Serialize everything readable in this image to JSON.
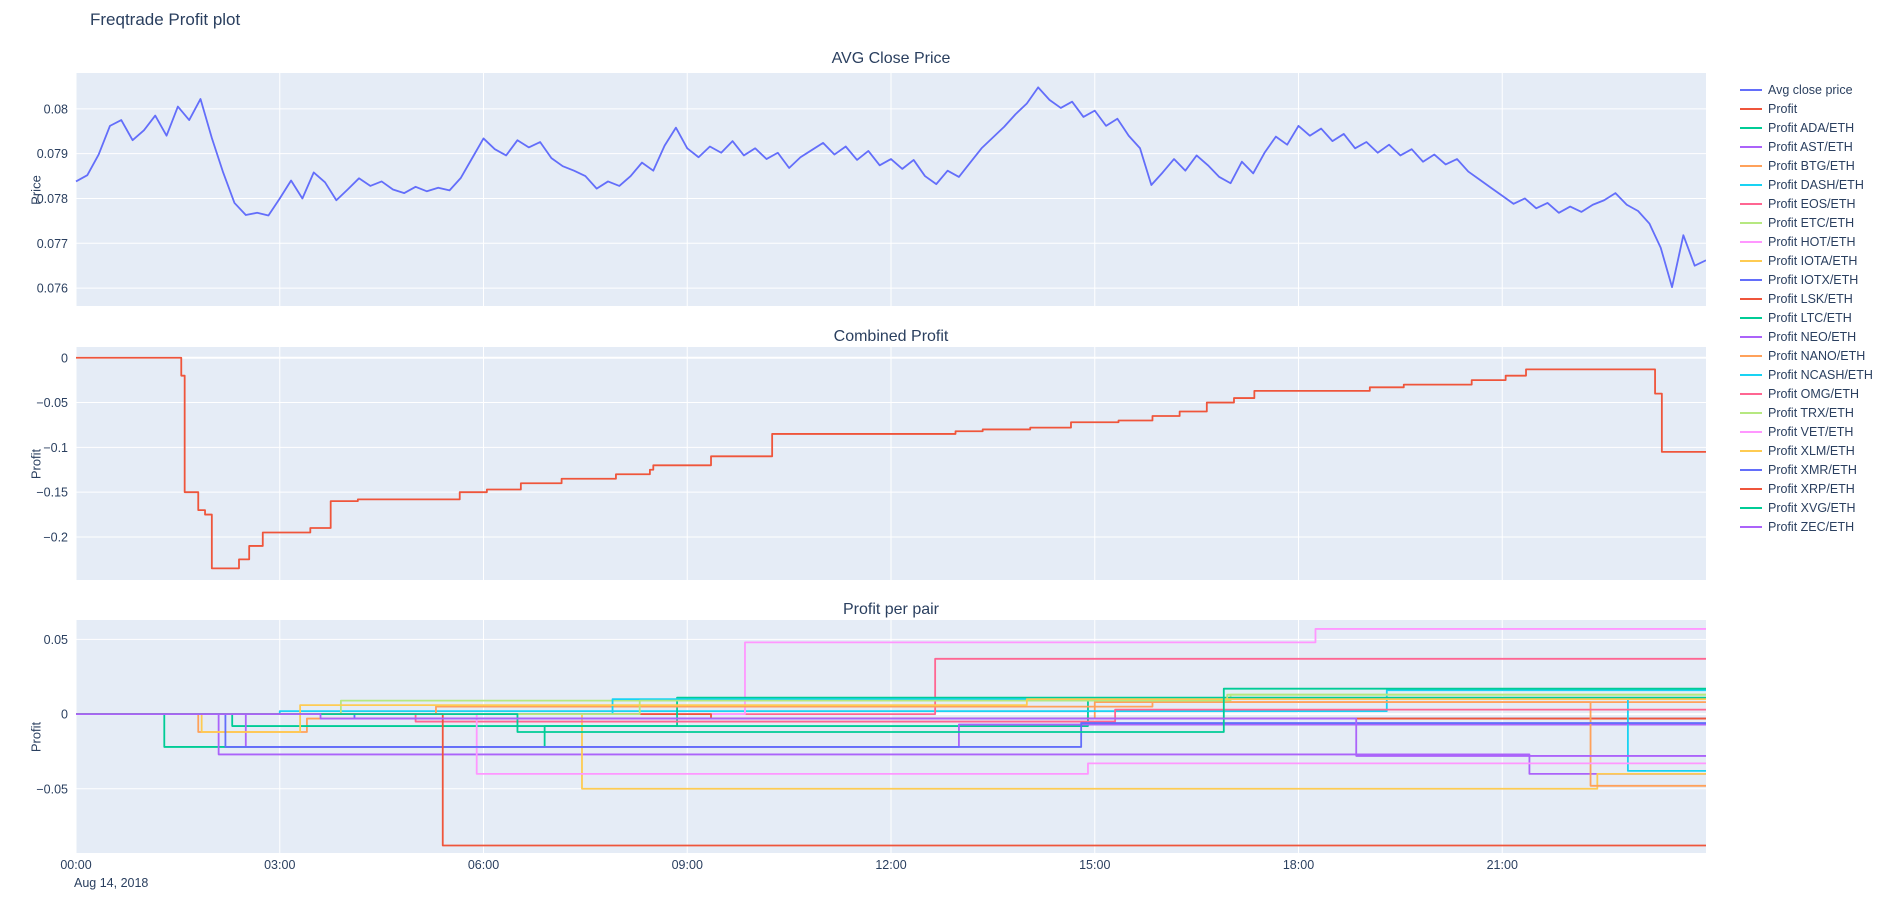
{
  "figure": {
    "title": "Freqtrade Profit plot"
  },
  "colors": {
    "plot_background": "#E5ECF6",
    "grid": "#ffffff",
    "text": "#2a3f5f"
  },
  "xaxis": {
    "range": [
      0,
      24
    ],
    "ticks": [
      0,
      3,
      6,
      9,
      12,
      15,
      18,
      21
    ],
    "tick_labels": [
      "00:00",
      "03:00",
      "06:00",
      "09:00",
      "12:00",
      "15:00",
      "18:00",
      "21:00"
    ],
    "date_label": "Aug 14, 2018"
  },
  "chart_data": [
    {
      "type": "line",
      "title": "AVG Close Price",
      "ylabel": "Price",
      "ylim": [
        0.0756,
        0.0808
      ],
      "ytick_values": [
        0.076,
        0.077,
        0.078,
        0.079,
        0.08
      ],
      "ytick_labels": [
        "0.076",
        "0.077",
        "0.078",
        "0.079",
        "0.08"
      ],
      "series": [
        {
          "name": "Avg close price",
          "color": "#636EFA",
          "x_start": 0,
          "x_step_minutes": 10,
          "values": [
            0.07838,
            0.07852,
            0.07898,
            0.07962,
            0.07975,
            0.0793,
            0.07952,
            0.07985,
            0.0794,
            0.08005,
            0.07975,
            0.08022,
            0.07935,
            0.07858,
            0.0779,
            0.07763,
            0.07768,
            0.07762,
            0.078,
            0.0784,
            0.078,
            0.07858,
            0.07836,
            0.07796,
            0.0782,
            0.07845,
            0.07828,
            0.07838,
            0.0782,
            0.07812,
            0.07826,
            0.07816,
            0.07824,
            0.07818,
            0.07846,
            0.0789,
            0.07934,
            0.0791,
            0.07896,
            0.0793,
            0.07914,
            0.07926,
            0.0789,
            0.07872,
            0.07862,
            0.0785,
            0.07822,
            0.07838,
            0.07828,
            0.0785,
            0.0788,
            0.07862,
            0.07918,
            0.07958,
            0.07912,
            0.07892,
            0.07916,
            0.07902,
            0.07928,
            0.07896,
            0.07912,
            0.07888,
            0.07902,
            0.07868,
            0.07892,
            0.07908,
            0.07924,
            0.07898,
            0.07916,
            0.07886,
            0.07906,
            0.07874,
            0.07888,
            0.07866,
            0.07886,
            0.0785,
            0.07832,
            0.07862,
            0.07848,
            0.0788,
            0.07912,
            0.07936,
            0.0796,
            0.07988,
            0.08012,
            0.08048,
            0.0802,
            0.08002,
            0.08016,
            0.07982,
            0.07996,
            0.07962,
            0.07978,
            0.0794,
            0.07912,
            0.0783,
            0.07858,
            0.07888,
            0.07862,
            0.07896,
            0.07874,
            0.07848,
            0.07834,
            0.07882,
            0.07856,
            0.07902,
            0.07938,
            0.0792,
            0.07962,
            0.0794,
            0.07956,
            0.07928,
            0.07944,
            0.07912,
            0.07926,
            0.07902,
            0.0792,
            0.07896,
            0.0791,
            0.07882,
            0.07898,
            0.07876,
            0.07888,
            0.0786,
            0.07842,
            0.07824,
            0.07806,
            0.07788,
            0.078,
            0.07778,
            0.0779,
            0.07768,
            0.07782,
            0.0777,
            0.07786,
            0.07796,
            0.07812,
            0.07786,
            0.07772,
            0.07744,
            0.0769,
            0.07602,
            0.07718,
            0.0765,
            0.07662
          ]
        }
      ]
    },
    {
      "type": "step-line",
      "title": "Combined Profit",
      "ylabel": "Profit",
      "ylim": [
        -0.248,
        0.012
      ],
      "ytick_values": [
        0,
        -0.05,
        -0.1,
        -0.15,
        -0.2
      ],
      "ytick_labels": [
        "0",
        "−0.05",
        "−0.1",
        "−0.15",
        "−0.2"
      ],
      "series": [
        {
          "name": "Profit",
          "color": "#EF553B",
          "points": [
            [
              0,
              0
            ],
            [
              1.55,
              -0.02
            ],
            [
              1.6,
              -0.15
            ],
            [
              1.8,
              -0.17
            ],
            [
              1.9,
              -0.175
            ],
            [
              2.0,
              -0.235
            ],
            [
              2.4,
              -0.225
            ],
            [
              2.55,
              -0.21
            ],
            [
              2.75,
              -0.195
            ],
            [
              3.45,
              -0.19
            ],
            [
              3.75,
              -0.16
            ],
            [
              4.15,
              -0.158
            ],
            [
              5.65,
              -0.15
            ],
            [
              6.05,
              -0.147
            ],
            [
              6.55,
              -0.14
            ],
            [
              7.15,
              -0.135
            ],
            [
              7.95,
              -0.13
            ],
            [
              8.45,
              -0.125
            ],
            [
              8.5,
              -0.12
            ],
            [
              9.35,
              -0.11
            ],
            [
              10.25,
              -0.085
            ],
            [
              12.95,
              -0.082
            ],
            [
              13.35,
              -0.08
            ],
            [
              14.05,
              -0.078
            ],
            [
              14.65,
              -0.072
            ],
            [
              15.35,
              -0.07
            ],
            [
              15.85,
              -0.065
            ],
            [
              16.25,
              -0.06
            ],
            [
              16.65,
              -0.05
            ],
            [
              17.05,
              -0.045
            ],
            [
              17.35,
              -0.037
            ],
            [
              19.05,
              -0.033
            ],
            [
              19.55,
              -0.03
            ],
            [
              20.55,
              -0.025
            ],
            [
              21.05,
              -0.02
            ],
            [
              21.35,
              -0.013
            ],
            [
              23.25,
              -0.04
            ],
            [
              23.35,
              -0.105
            ]
          ]
        }
      ]
    },
    {
      "type": "step-line",
      "title": "Profit per pair",
      "ylabel": "Profit",
      "ylim": [
        -0.093,
        0.063
      ],
      "ytick_values": [
        0.05,
        0,
        -0.05
      ],
      "ytick_labels": [
        "0.05",
        "0",
        "−0.05"
      ],
      "series": [
        {
          "name": "Profit ADA/ETH",
          "color": "#00CC96",
          "points": [
            [
              0,
              0
            ],
            [
              1.3,
              -0.022
            ],
            [
              6.9,
              -0.008
            ],
            [
              14.9,
              0.01
            ]
          ]
        },
        {
          "name": "Profit AST/ETH",
          "color": "#AB63FA",
          "points": [
            [
              0,
              0
            ],
            [
              2.1,
              -0.027
            ],
            [
              21.4,
              -0.04
            ]
          ]
        },
        {
          "name": "Profit BTG/ETH",
          "color": "#FFA15A",
          "points": [
            [
              0,
              0
            ],
            [
              1.8,
              -0.012
            ],
            [
              3.4,
              -0.003
            ],
            [
              15.0,
              0.008
            ]
          ]
        },
        {
          "name": "Profit DASH/ETH",
          "color": "#19D3F3",
          "points": [
            [
              0,
              0
            ],
            [
              3.0,
              0.002
            ],
            [
              19.3,
              0.016
            ]
          ]
        },
        {
          "name": "Profit EOS/ETH",
          "color": "#FF6692",
          "points": [
            [
              0,
              0
            ],
            [
              12.65,
              0.037
            ]
          ]
        },
        {
          "name": "Profit ETC/ETH",
          "color": "#B6E880",
          "points": [
            [
              0,
              0
            ],
            [
              3.9,
              0.009
            ],
            [
              17.0,
              0.013
            ]
          ]
        },
        {
          "name": "Profit HOT/ETH",
          "color": "#FF97FF",
          "points": [
            [
              0,
              0
            ],
            [
              9.85,
              0.048
            ],
            [
              18.25,
              0.057
            ]
          ]
        },
        {
          "name": "Profit IOTA/ETH",
          "color": "#FECB52",
          "points": [
            [
              0,
              0
            ],
            [
              7.45,
              -0.05
            ],
            [
              22.4,
              -0.04
            ]
          ]
        },
        {
          "name": "Profit IOTX/ETH",
          "color": "#636EFA",
          "points": [
            [
              0,
              0
            ],
            [
              4.1,
              -0.003
            ]
          ]
        },
        {
          "name": "Profit LSK/ETH",
          "color": "#EF553B",
          "points": [
            [
              0,
              0
            ],
            [
              9.35,
              -0.003
            ]
          ]
        },
        {
          "name": "Profit LTC/ETH",
          "color": "#00CC96",
          "points": [
            [
              0,
              0
            ],
            [
              2.3,
              -0.008
            ],
            [
              8.85,
              0.011
            ]
          ]
        },
        {
          "name": "Profit NEO/ETH",
          "color": "#AB63FA",
          "points": [
            [
              0,
              0
            ],
            [
              2.5,
              -0.022
            ],
            [
              13.0,
              -0.007
            ]
          ]
        },
        {
          "name": "Profit NANO/ETH",
          "color": "#FFA15A",
          "points": [
            [
              0,
              0
            ],
            [
              5.3,
              0.005
            ],
            [
              15.85,
              0.008
            ],
            [
              22.3,
              -0.048
            ]
          ]
        },
        {
          "name": "Profit NCASH/ETH",
          "color": "#19D3F3",
          "points": [
            [
              0,
              0
            ],
            [
              7.9,
              0.01
            ],
            [
              22.85,
              -0.038
            ]
          ]
        },
        {
          "name": "Profit OMG/ETH",
          "color": "#FF6692",
          "points": [
            [
              0,
              0
            ],
            [
              5.0,
              -0.005
            ],
            [
              15.3,
              0.003
            ]
          ]
        },
        {
          "name": "Profit TRX/ETH",
          "color": "#B6E880",
          "points": [
            [
              0,
              0
            ],
            [
              8.3,
              0.009
            ],
            [
              16.95,
              0.013
            ]
          ]
        },
        {
          "name": "Profit VET/ETH",
          "color": "#FF97FF",
          "points": [
            [
              0,
              0
            ],
            [
              5.9,
              -0.04
            ],
            [
              14.9,
              -0.033
            ]
          ]
        },
        {
          "name": "Profit XLM/ETH",
          "color": "#FECB52",
          "points": [
            [
              0,
              0
            ],
            [
              1.85,
              -0.012
            ],
            [
              3.3,
              0.006
            ],
            [
              14.0,
              0.01
            ]
          ]
        },
        {
          "name": "Profit XMR/ETH",
          "color": "#636EFA",
          "points": [
            [
              0,
              0
            ],
            [
              2.2,
              -0.022
            ],
            [
              14.8,
              -0.006
            ]
          ]
        },
        {
          "name": "Profit XRP/ETH",
          "color": "#EF553B",
          "points": [
            [
              0,
              0
            ],
            [
              5.4,
              -0.088
            ]
          ]
        },
        {
          "name": "Profit XVG/ETH",
          "color": "#00CC96",
          "points": [
            [
              0,
              0
            ],
            [
              6.5,
              -0.012
            ],
            [
              16.9,
              0.017
            ]
          ]
        },
        {
          "name": "Profit ZEC/ETH",
          "color": "#AB63FA",
          "points": [
            [
              0,
              0
            ],
            [
              3.6,
              -0.003
            ],
            [
              18.85,
              -0.028
            ]
          ]
        }
      ]
    }
  ],
  "legend": {
    "items": [
      {
        "label": "Avg close price",
        "color": "#636EFA"
      },
      {
        "label": "Profit",
        "color": "#EF553B"
      },
      {
        "label": "Profit ADA/ETH",
        "color": "#00CC96"
      },
      {
        "label": "Profit AST/ETH",
        "color": "#AB63FA"
      },
      {
        "label": "Profit BTG/ETH",
        "color": "#FFA15A"
      },
      {
        "label": "Profit DASH/ETH",
        "color": "#19D3F3"
      },
      {
        "label": "Profit EOS/ETH",
        "color": "#FF6692"
      },
      {
        "label": "Profit ETC/ETH",
        "color": "#B6E880"
      },
      {
        "label": "Profit HOT/ETH",
        "color": "#FF97FF"
      },
      {
        "label": "Profit IOTA/ETH",
        "color": "#FECB52"
      },
      {
        "label": "Profit IOTX/ETH",
        "color": "#636EFA"
      },
      {
        "label": "Profit LSK/ETH",
        "color": "#EF553B"
      },
      {
        "label": "Profit LTC/ETH",
        "color": "#00CC96"
      },
      {
        "label": "Profit NEO/ETH",
        "color": "#AB63FA"
      },
      {
        "label": "Profit NANO/ETH",
        "color": "#FFA15A"
      },
      {
        "label": "Profit NCASH/ETH",
        "color": "#19D3F3"
      },
      {
        "label": "Profit OMG/ETH",
        "color": "#FF6692"
      },
      {
        "label": "Profit TRX/ETH",
        "color": "#B6E880"
      },
      {
        "label": "Profit VET/ETH",
        "color": "#FF97FF"
      },
      {
        "label": "Profit XLM/ETH",
        "color": "#FECB52"
      },
      {
        "label": "Profit XMR/ETH",
        "color": "#636EFA"
      },
      {
        "label": "Profit XRP/ETH",
        "color": "#EF553B"
      },
      {
        "label": "Profit XVG/ETH",
        "color": "#00CC96"
      },
      {
        "label": "Profit ZEC/ETH",
        "color": "#AB63FA"
      }
    ]
  }
}
